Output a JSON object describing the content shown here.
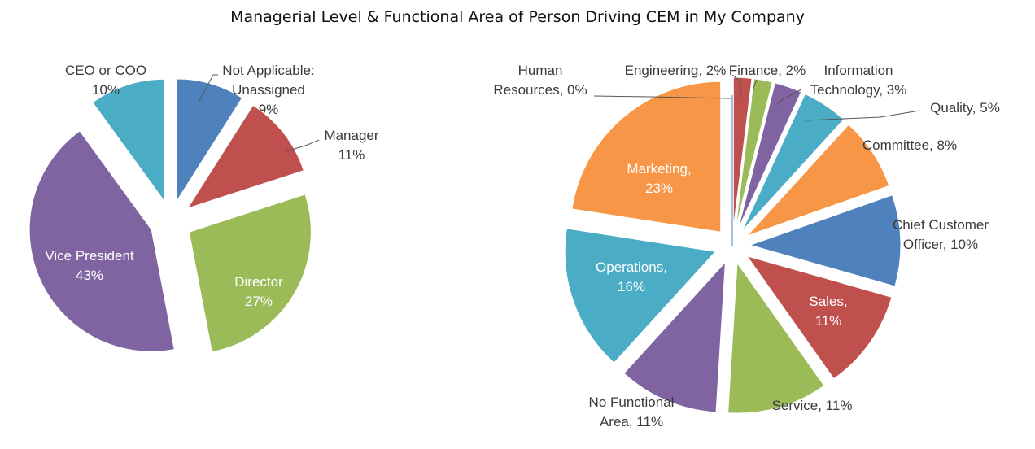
{
  "title": "Managerial Level & Functional Area of Person Driving CEM in My Company",
  "chart_data": [
    {
      "type": "pie",
      "title": "",
      "slices": [
        {
          "label": "Not Applicable: Unassigned",
          "value": 9,
          "pct_text": "9%",
          "color": "#4f81bd"
        },
        {
          "label": "Manager",
          "value": 11,
          "pct_text": "11%",
          "color": "#c0504d"
        },
        {
          "label": "Director",
          "value": 27,
          "pct_text": "27%",
          "color": "#9bbb59"
        },
        {
          "label": "Vice President",
          "value": 43,
          "pct_text": "43%",
          "color": "#8064a2"
        },
        {
          "label": "CEO or COO",
          "value": 10,
          "pct_text": "10%",
          "color": "#4bacc6"
        }
      ]
    },
    {
      "type": "pie",
      "title": "",
      "slices": [
        {
          "label": "Engineering",
          "value": 2,
          "pct_text": "2%",
          "color": "#c0504d"
        },
        {
          "label": "Finance",
          "value": 2,
          "pct_text": "2%",
          "color": "#9bbb59"
        },
        {
          "label": "Information Technology",
          "value": 3,
          "pct_text": "3%",
          "color": "#8064a2"
        },
        {
          "label": "Quality",
          "value": 5,
          "pct_text": "5%",
          "color": "#4bacc6"
        },
        {
          "label": "Committee",
          "value": 8,
          "pct_text": "8%",
          "color": "#f79646"
        },
        {
          "label": "Chief Customer Officer",
          "value": 10,
          "pct_text": "10%",
          "color": "#4f81bd"
        },
        {
          "label": "Sales",
          "value": 11,
          "pct_text": "11%",
          "color": "#c0504d"
        },
        {
          "label": "Service",
          "value": 11,
          "pct_text": "11%",
          "color": "#9bbb59"
        },
        {
          "label": "No Functional Area",
          "value": 11,
          "pct_text": "11%",
          "color": "#8064a2"
        },
        {
          "label": "Operations",
          "value": 16,
          "pct_text": "16%",
          "color": "#4bacc6"
        },
        {
          "label": "Marketing",
          "value": 23,
          "pct_text": "23%",
          "color": "#f79646"
        },
        {
          "label": "Human Resources",
          "value": 0,
          "pct_text": "0%",
          "color": "#4f81bd"
        }
      ]
    }
  ]
}
